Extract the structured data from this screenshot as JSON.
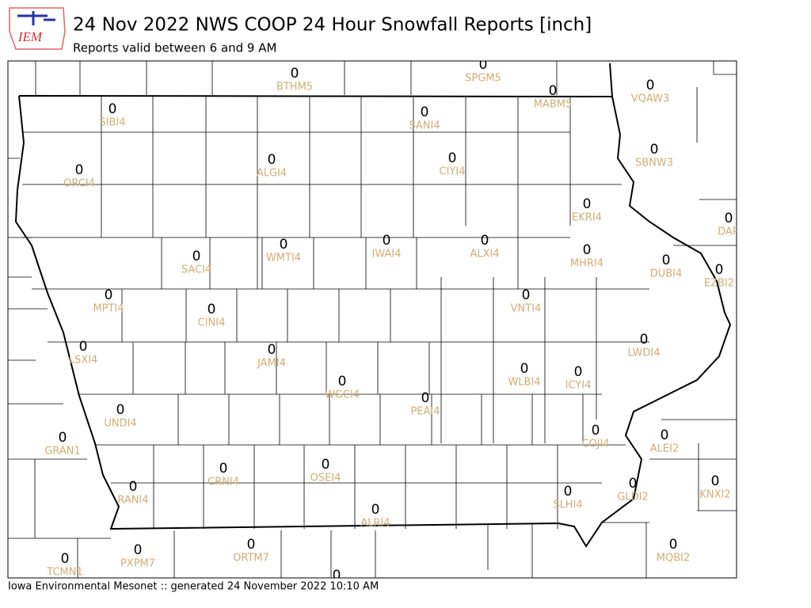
{
  "logo": "IEM",
  "title": "24 Nov 2022 NWS COOP 24 Hour Snowfall Reports [inch]",
  "subtitle": "Reports valid between 6 and 9 AM",
  "footer": "Iowa Environmental Mesonet :: generated 24 November 2022 10:10 AM",
  "stations": [
    {
      "id": "BTHM5",
      "value": 0
    },
    {
      "id": "SPGM5",
      "value": 0
    },
    {
      "id": "MABM5",
      "value": 0
    },
    {
      "id": "VQAW3",
      "value": 0
    },
    {
      "id": "SIBI4",
      "value": 0
    },
    {
      "id": "SANI4",
      "value": 0
    },
    {
      "id": "SBNW3",
      "value": 0
    },
    {
      "id": "ALGI4",
      "value": 0
    },
    {
      "id": "CIYI4",
      "value": 0
    },
    {
      "id": "ORCI4",
      "value": 0
    },
    {
      "id": "EKRI4",
      "value": 0
    },
    {
      "id": "DAR",
      "value": 0
    },
    {
      "id": "SACI4",
      "value": 0
    },
    {
      "id": "WMTI4",
      "value": 0
    },
    {
      "id": "IWAI4",
      "value": 0
    },
    {
      "id": "ALXI4",
      "value": 0
    },
    {
      "id": "MHRI4",
      "value": 0
    },
    {
      "id": "DUBI4",
      "value": 0
    },
    {
      "id": "EZBI2",
      "value": 0
    },
    {
      "id": "MPTI4",
      "value": 0
    },
    {
      "id": "CINI4",
      "value": 0
    },
    {
      "id": "VNTI4",
      "value": 0
    },
    {
      "id": "LWDI4",
      "value": 0
    },
    {
      "id": "LSXI4",
      "value": 0
    },
    {
      "id": "JAMI4",
      "value": 0
    },
    {
      "id": "WLBI4",
      "value": 0
    },
    {
      "id": "ICYI4",
      "value": 0
    },
    {
      "id": "WGCI4",
      "value": 0
    },
    {
      "id": "PEAI4",
      "value": 0
    },
    {
      "id": "UNDI4",
      "value": 0
    },
    {
      "id": "COJI4",
      "value": 0
    },
    {
      "id": "ALEI2",
      "value": 0
    },
    {
      "id": "GRAN1",
      "value": 0
    },
    {
      "id": "CRNI4",
      "value": 0
    },
    {
      "id": "OSEI4",
      "value": 0
    },
    {
      "id": "KNXI2",
      "value": 0
    },
    {
      "id": "RANI4",
      "value": 0
    },
    {
      "id": "SLHI4",
      "value": 0
    },
    {
      "id": "GLDI2",
      "value": 0
    },
    {
      "id": "ALRI4",
      "value": 0
    },
    {
      "id": "MQBI2",
      "value": 0
    },
    {
      "id": "PXPM7",
      "value": 0
    },
    {
      "id": "ORTM7",
      "value": 0
    },
    {
      "id": "TCMN1",
      "value": 0
    },
    {
      "id": null,
      "value": 0
    }
  ]
}
